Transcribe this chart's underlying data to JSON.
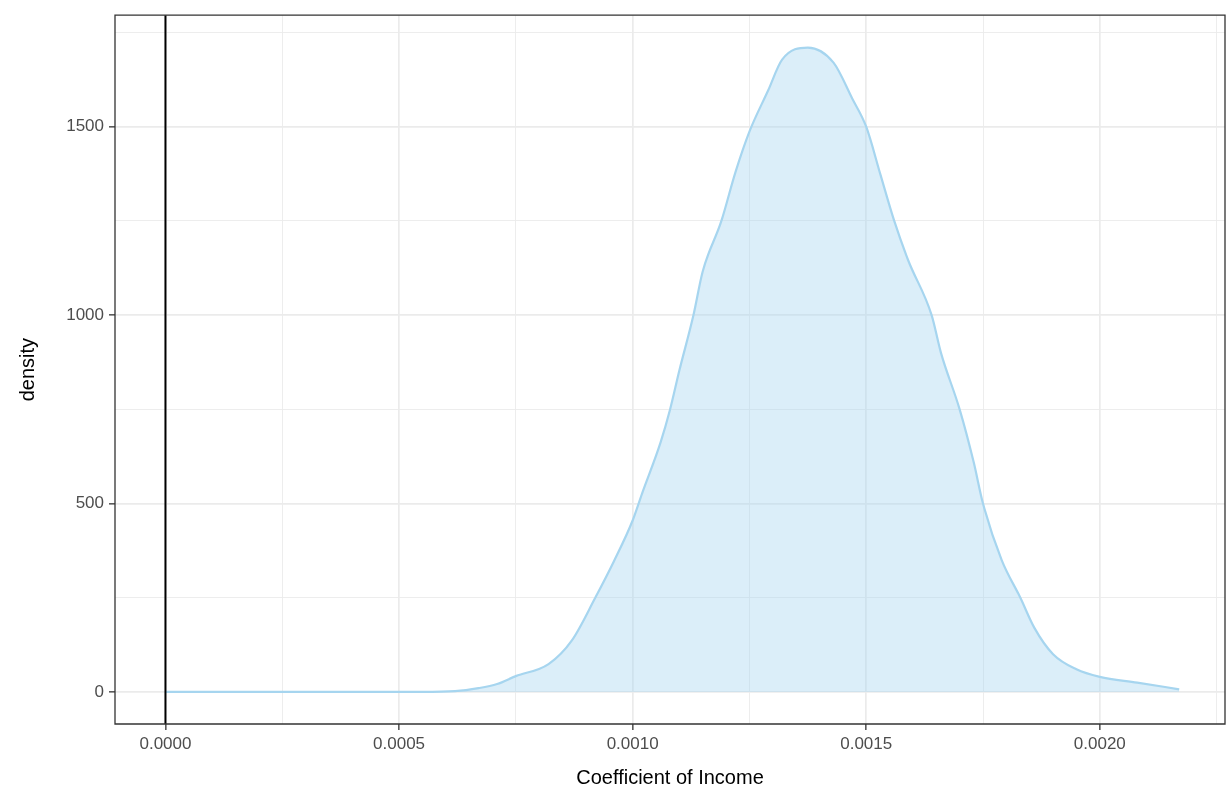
{
  "chart_data": {
    "type": "area",
    "xlabel": "Coefficient of Income",
    "ylabel": "density",
    "xlim": [
      -0.000108,
      0.002268
    ],
    "ylim": [
      -85,
      1796
    ],
    "xticks": [
      {
        "value": 0,
        "label": "0.0000"
      },
      {
        "value": 0.00025,
        "label": null
      },
      {
        "value": 0.0005,
        "label": "0.0005"
      },
      {
        "value": 0.00075,
        "label": null
      },
      {
        "value": 0.001,
        "label": "0.0010"
      },
      {
        "value": 0.00125,
        "label": null
      },
      {
        "value": 0.0015,
        "label": "0.0015"
      },
      {
        "value": 0.00175,
        "label": null
      },
      {
        "value": 0.002,
        "label": "0.0020"
      },
      {
        "value": 0.00225,
        "label": null
      }
    ],
    "yticks": [
      0,
      {
        "value": 250,
        "label": null
      },
      500,
      {
        "value": 750,
        "label": null
      },
      1000,
      {
        "value": 1250,
        "label": null
      },
      1500,
      {
        "value": 1750,
        "label": null
      }
    ],
    "grid": true,
    "ref_lines": [
      {
        "axis": "x",
        "value": 0,
        "color": "#000000"
      }
    ],
    "series": [
      {
        "color": "#a6d5ef",
        "x": [
          0,
          0.0003,
          0.00055,
          0.00062,
          0.00067,
          0.00071,
          0.00075,
          0.00082,
          0.00087,
          0.00092,
          0.00096,
          0.001,
          0.00102,
          0.00106,
          0.00108,
          0.0011,
          0.00113,
          0.00115,
          0.00119,
          0.00122,
          0.00125,
          0.00129,
          0.00132,
          0.001375,
          0.00143,
          0.00147,
          0.0015,
          0.00153,
          0.00156,
          0.00159,
          0.00164,
          0.00166,
          0.0017,
          0.00173,
          0.00175,
          0.00179,
          0.00183,
          0.00186,
          0.0019,
          0.00195,
          0.002,
          0.00208,
          0.00217
        ],
        "values": [
          0,
          0,
          0,
          2,
          10,
          21,
          42,
          74,
          137,
          250,
          347,
          455,
          526,
          663,
          749,
          853,
          999,
          1116,
          1250,
          1379,
          1487,
          1596,
          1678,
          1710,
          1670,
          1575,
          1500,
          1375,
          1250,
          1145,
          1000,
          900,
          750,
          610,
          500,
          350,
          250,
          170,
          100,
          60,
          40,
          25,
          7
        ]
      }
    ]
  }
}
